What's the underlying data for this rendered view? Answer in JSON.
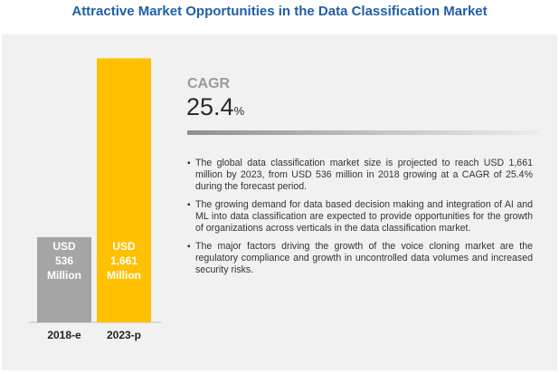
{
  "header": {
    "title": "Attractive Market Opportunities in the Data Classification Market"
  },
  "chart_data": {
    "type": "bar",
    "categories": [
      "2018-e",
      "2023-p"
    ],
    "values": [
      536,
      1661
    ],
    "data_labels": [
      [
        "USD",
        "536",
        "Million"
      ],
      [
        "USD",
        "1,661",
        "Million"
      ]
    ],
    "bar_colors": [
      "#a5a5a5",
      "#ffc000"
    ],
    "ylim": [
      0,
      1800
    ],
    "grid": false,
    "legend": "none"
  },
  "cagr": {
    "label": "CAGR",
    "value": "25.4",
    "unit": "%"
  },
  "bullets": [
    "The global data classification market size is projected to reach USD 1,661 million by 2023, from USD 536 million in 2018 growing at a CAGR of 25.4% during the forecast period.",
    "The growing demand for data based decision making and integration of AI and ML into data classification are expected to provide opportunities for the growth of organizations across verticals in the data classification market.",
    "The major factors driving the growth of the voice cloning market are the regulatory compliance and growth in uncontrolled data volumes and increased security risks."
  ],
  "bullet_symbol": "▪"
}
